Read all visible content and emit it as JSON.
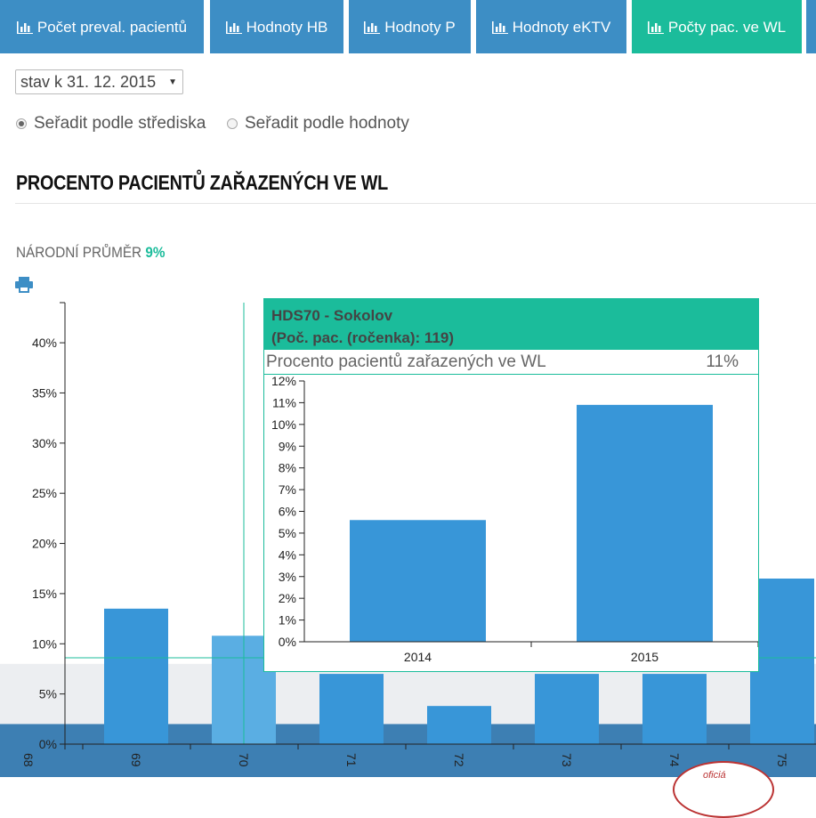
{
  "tabs": [
    {
      "label": "Počet preval. pacientů",
      "active": false
    },
    {
      "label": "Hodnoty HB",
      "active": false
    },
    {
      "label": "Hodnoty P",
      "active": false
    },
    {
      "label": "Hodnoty eKTV",
      "active": false
    },
    {
      "label": "Počty pac. ve WL",
      "active": true
    }
  ],
  "filter": {
    "selected": "stav k 31. 12. 2015"
  },
  "sort": {
    "option_center": "Seřadit podle střediska",
    "option_value": "Seřadit podle hodnoty",
    "selected": "center"
  },
  "heading": "PROCENTO PACIENTŮ ZAŘAZENÝCH VE WL",
  "national_average": {
    "label": "NÁRODNÍ PRŮMĚR",
    "value": "9%"
  },
  "icons": {
    "print": "print-icon",
    "tab": "bar-chart-icon"
  },
  "colors": {
    "tab": "#3d8ec5",
    "tab_active": "#1bbc9b",
    "bar": "#3896d8",
    "bar_highlight": "#5aaee3",
    "accent": "#1bbc9b"
  },
  "tooltip": {
    "title": "HDS70 - Sokolov",
    "subtitle": "(Poč. pac. (ročenka): 119)",
    "metric_label": "Procento pacientů zařazených ve WL",
    "metric_value": "11%"
  },
  "badge_text": "oficiá",
  "chart_data": [
    {
      "type": "bar",
      "categories": [
        "68",
        "69",
        "70",
        "71",
        "72",
        "73",
        "74",
        "75"
      ],
      "values": [
        null,
        13.5,
        10.8,
        7.0,
        3.8,
        7.0,
        7.0,
        16.5
      ],
      "highlighted": "70",
      "average_line": 8.6,
      "ylim": [
        0,
        44
      ],
      "yticks": [
        "0%",
        "5%",
        "10%",
        "15%",
        "20%",
        "25%",
        "30%",
        "35%",
        "40%"
      ],
      "bands": [
        2.0,
        8.0
      ],
      "grid": false
    },
    {
      "type": "bar",
      "categories": [
        "2014",
        "2015"
      ],
      "values": [
        5.6,
        10.9
      ],
      "ylim": [
        0,
        12
      ],
      "yticks": [
        "0%",
        "1%",
        "2%",
        "3%",
        "4%",
        "5%",
        "6%",
        "7%",
        "8%",
        "9%",
        "10%",
        "11%",
        "12%"
      ],
      "grid": false
    }
  ]
}
